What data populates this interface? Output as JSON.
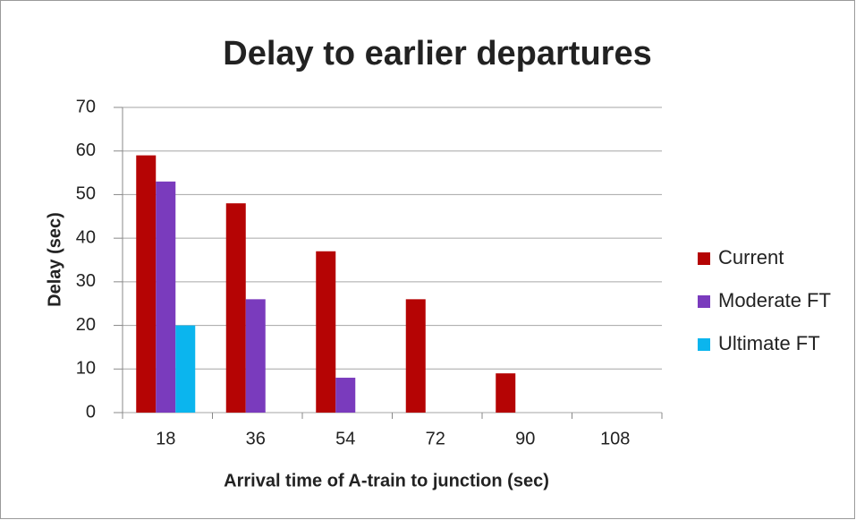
{
  "chart_data": {
    "type": "bar",
    "title": "Delay to earlier departures",
    "x_label": "Arrival time of A-train to junction (sec)",
    "y_label": "Delay (sec)",
    "categories": [
      "18",
      "36",
      "54",
      "72",
      "90",
      "108"
    ],
    "series": [
      {
        "name": "Current",
        "color": "#b50404",
        "values": [
          59,
          48,
          37,
          26,
          9,
          0
        ]
      },
      {
        "name": "Moderate FT",
        "color": "#7a3bbd",
        "values": [
          53,
          26,
          8,
          0,
          0,
          0
        ]
      },
      {
        "name": "Ultimate FT",
        "color": "#0bb5ee",
        "values": [
          20,
          0,
          0,
          0,
          0,
          0
        ]
      }
    ],
    "ylim": [
      0,
      70
    ],
    "yticks": [
      0,
      10,
      20,
      30,
      40,
      50,
      60,
      70
    ],
    "grid": true,
    "legend": "right"
  }
}
